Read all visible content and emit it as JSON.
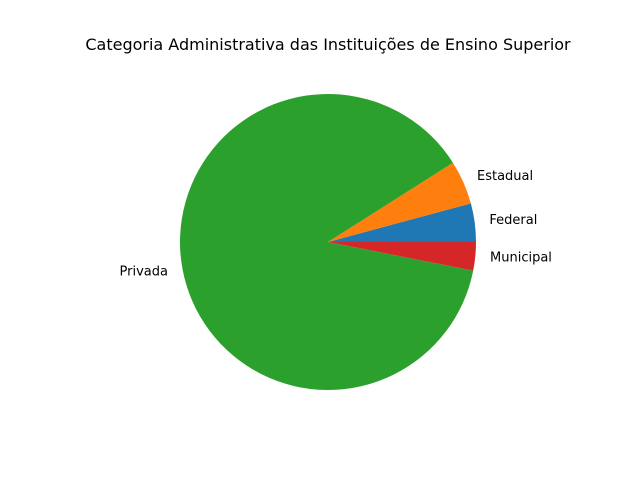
{
  "chart_data": {
    "type": "pie",
    "title": "Categoria Administrativa das Instituições de Ensino Superior",
    "categories": [
      "Federal",
      "Estadual",
      "Privada",
      "Municipal"
    ],
    "values": [
      4.2,
      4.8,
      87.9,
      3.1
    ],
    "colors": [
      "#1f77b4",
      "#ff7f0e",
      "#2ca02c",
      "#d62728"
    ],
    "start_angle_deg": 0,
    "direction": "counterclockwise",
    "legend": "none"
  }
}
